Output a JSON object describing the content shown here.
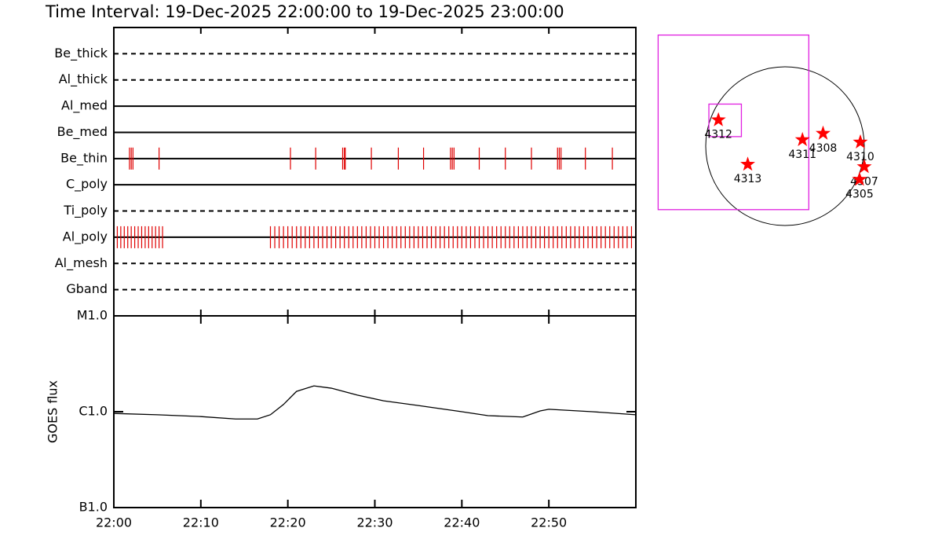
{
  "title": "Time Interval: 19-Dec-2025 22:00:00 to 19-Dec-2025 23:00:00",
  "chart_data": [
    {
      "type": "strip",
      "categories": [
        "Be_thick",
        "Al_thick",
        "Al_med",
        "Be_med",
        "Be_thin",
        "C_poly",
        "Ti_poly",
        "Al_poly",
        "Al_mesh",
        "Gband"
      ],
      "styles": [
        "dashed",
        "dashed",
        "solid",
        "solid",
        "solid",
        "solid",
        "dashed",
        "solid",
        "dashed",
        "dashed"
      ],
      "xlim": [
        0,
        60
      ],
      "xticks": [
        0,
        10,
        20,
        30,
        40,
        50
      ],
      "events": [
        {
          "name": "Be_thin",
          "color": "#e00000",
          "x": [
            1.8,
            2.0,
            2.2,
            5.2,
            20.3,
            23.2,
            26.3,
            26.5,
            26.6,
            29.6,
            32.7,
            35.6,
            38.7,
            38.9,
            39.1,
            42.0,
            45.0,
            48.0,
            51.0,
            51.2,
            51.4,
            54.2,
            57.3
          ]
        },
        {
          "name": "Al_poly",
          "color": "#e00000",
          "x": [
            0.4,
            0.8,
            1.2,
            1.6,
            2.0,
            2.4,
            2.8,
            3.2,
            3.6,
            4.0,
            4.4,
            4.8,
            5.2,
            5.6,
            18,
            18.5,
            19,
            19.5,
            20,
            20.5,
            21,
            21.5,
            22,
            22.5,
            23,
            23.5,
            24,
            24.5,
            25,
            25.5,
            26,
            26.5,
            27,
            27.5,
            28,
            28.5,
            29,
            29.5,
            30,
            30.5,
            31,
            31.5,
            32,
            32.5,
            33,
            33.5,
            34,
            34.5,
            35,
            35.5,
            36,
            36.5,
            37,
            37.5,
            38,
            38.5,
            39,
            39.5,
            40,
            40.5,
            41,
            41.5,
            42,
            42.5,
            43,
            43.5,
            44,
            44.5,
            45,
            45.5,
            46,
            46.5,
            47,
            47.5,
            48,
            48.5,
            49,
            49.5,
            50,
            50.5,
            51,
            51.5,
            52,
            52.5,
            53,
            53.5,
            54,
            54.5,
            55,
            55.5,
            56,
            56.5,
            57,
            57.5,
            58,
            58.5,
            59,
            59.5
          ]
        }
      ]
    },
    {
      "type": "line",
      "ylabel": "GOES flux",
      "log": true,
      "color": "#000000",
      "x": [
        0,
        5,
        10,
        14,
        16.5,
        18,
        19.5,
        21,
        23,
        25,
        28,
        31,
        35,
        40,
        43,
        47,
        49,
        50,
        55,
        60
      ],
      "values": [
        9.6e-07,
        9.3e-07,
        8.9e-07,
        8.4e-07,
        8.4e-07,
        9.3e-07,
        1.19e-06,
        1.63e-06,
        1.86e-06,
        1.76e-06,
        1.49e-06,
        1.3e-06,
        1.16e-06,
        1e-06,
        9.1e-07,
        8.8e-07,
        1.02e-06,
        1.06e-06,
        1e-06,
        9.3e-07
      ],
      "ylim": [
        1e-07,
        1e-05
      ],
      "yticks": [
        {
          "value": 1e-07,
          "label": "B1.0"
        },
        {
          "value": 1e-06,
          "label": "C1.0"
        },
        {
          "value": 1e-05,
          "label": "M1.0"
        }
      ],
      "xlim": [
        0,
        60
      ],
      "xticks": [
        {
          "value": 0,
          "label": "22:00"
        },
        {
          "value": 10,
          "label": "22:10"
        },
        {
          "value": 20,
          "label": "22:20"
        },
        {
          "value": 30,
          "label": "22:30"
        },
        {
          "value": 40,
          "label": "22:40"
        },
        {
          "value": 50,
          "label": "22:50"
        }
      ]
    },
    {
      "type": "map",
      "star_color": "#ff0000",
      "box_color": "#e020e0",
      "regions": [
        {
          "label": "4312",
          "x": -0.84,
          "y": 0.33
        },
        {
          "label": "4313",
          "x": -0.47,
          "y": -0.23
        },
        {
          "label": "4311",
          "x": 0.22,
          "y": 0.08
        },
        {
          "label": "4308",
          "x": 0.48,
          "y": 0.16
        },
        {
          "label": "4310",
          "x": 0.95,
          "y": 0.05
        },
        {
          "label": "4307",
          "x": 1.0,
          "y": -0.26
        },
        {
          "label": "4305",
          "x": 0.94,
          "y": -0.42
        }
      ],
      "boxes": [
        [
          -1.6,
          1.4,
          0.3,
          -0.8
        ],
        [
          -0.96,
          0.53,
          -0.55,
          0.12
        ]
      ]
    }
  ]
}
